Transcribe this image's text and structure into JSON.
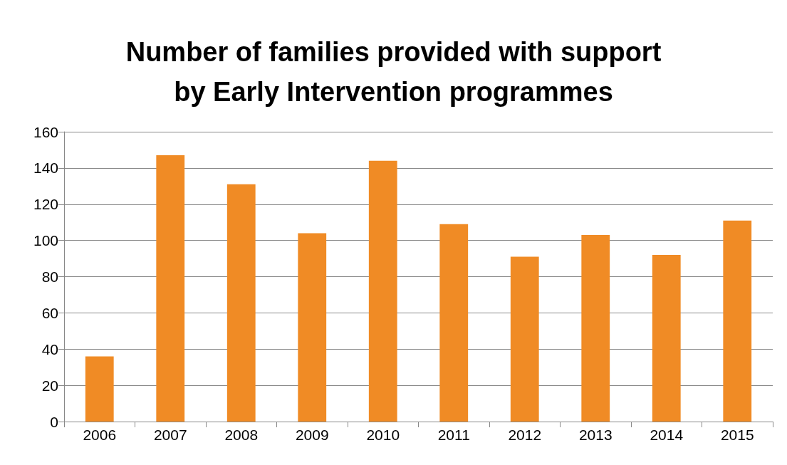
{
  "chart_data": {
    "type": "bar",
    "title": "Number of families provided with support\nby Early Intervention programmes",
    "categories": [
      "2006",
      "2007",
      "2008",
      "2009",
      "2010",
      "2011",
      "2012",
      "2013",
      "2014",
      "2015"
    ],
    "values": [
      36,
      147,
      131,
      104,
      144,
      109,
      91,
      103,
      92,
      111
    ],
    "color": "#f08b25",
    "ylim": [
      0,
      160
    ],
    "yticks": [
      0,
      20,
      40,
      60,
      80,
      100,
      120,
      140,
      160
    ],
    "grid": "y"
  }
}
